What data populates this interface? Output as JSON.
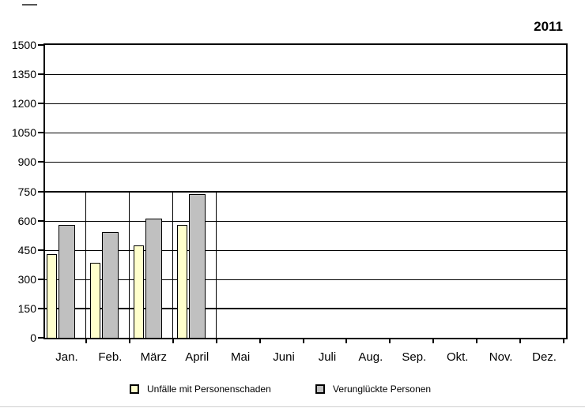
{
  "chart_data": {
    "type": "bar",
    "title": "2011",
    "categories": [
      "Jan.",
      "Feb.",
      "März",
      "April",
      "Mai",
      "Juni",
      "Juli",
      "Aug.",
      "Sep.",
      "Okt.",
      "Nov.",
      "Dez."
    ],
    "series": [
      {
        "name": "Unfälle mit Personenschaden",
        "color": "#FFFFCC",
        "values": [
          430,
          385,
          475,
          580,
          null,
          null,
          null,
          null,
          null,
          null,
          null,
          null
        ]
      },
      {
        "name": "Verunglückte Personen",
        "color": "#C0C0C0",
        "values": [
          580,
          540,
          610,
          735,
          null,
          null,
          null,
          null,
          null,
          null,
          null,
          null
        ]
      }
    ],
    "xlabel": "",
    "ylabel": "",
    "ylim": [
      0,
      1500
    ],
    "y_ticks": [
      1500,
      1350,
      1200,
      1050,
      900,
      750,
      600,
      450,
      300,
      150,
      0
    ],
    "y_tick_step": 150,
    "grid": "horizontal",
    "emphasized_gridlines": [
      750,
      150
    ],
    "legend_position": "bottom",
    "bar_border_color": "#000000"
  }
}
